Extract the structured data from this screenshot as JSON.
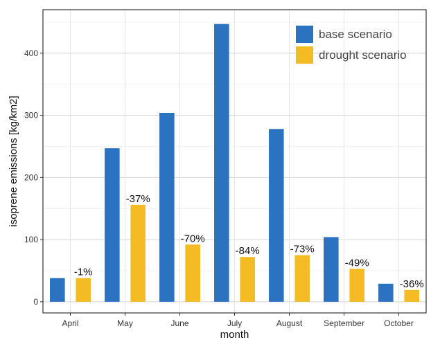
{
  "chart_data": {
    "type": "bar",
    "title": "",
    "xlabel": "month",
    "ylabel": "isoprene emissions [kg/km2]",
    "categories": [
      "April",
      "May",
      "June",
      "July",
      "August",
      "September",
      "October"
    ],
    "series": [
      {
        "name": "base scenario",
        "color": "#2b72c0",
        "values": [
          38,
          247,
          304,
          447,
          278,
          104,
          29
        ]
      },
      {
        "name": "drought scenario",
        "color": "#f4bc23",
        "values": [
          38,
          156,
          92,
          72,
          75,
          53,
          19
        ]
      }
    ],
    "data_labels": [
      "-1%",
      "-37%",
      "-70%",
      "-84%",
      "-73%",
      "-49%",
      "-36%"
    ],
    "data_labels_series": "drought scenario",
    "ylim": [
      -18,
      470
    ],
    "yticks": [
      0,
      100,
      200,
      300,
      400
    ],
    "grid": true,
    "legend_position": "top-right"
  }
}
